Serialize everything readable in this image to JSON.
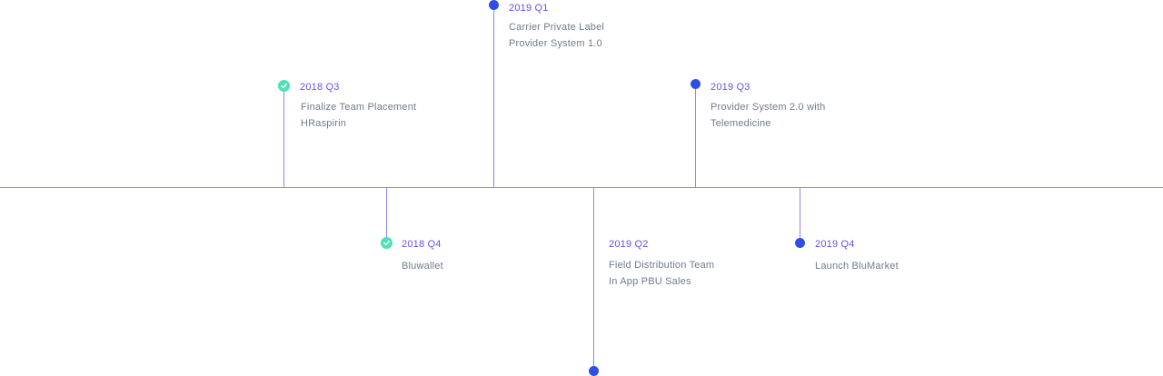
{
  "colors": {
    "line": "#8f86ec",
    "done": "#4fe0b6",
    "pending": "#2f4ee6",
    "quarter": "#6b4fe0",
    "text": "#707b8e"
  },
  "milestones": [
    {
      "quarter": "2018 Q3",
      "lines": [
        "Finalize Team Placement",
        "HRaspirin"
      ],
      "status": "done",
      "icon": "check-icon"
    },
    {
      "quarter": "2018 Q4",
      "lines": [
        "Bluwallet"
      ],
      "status": "done",
      "icon": "check-icon"
    },
    {
      "quarter": "2019 Q1",
      "lines": [
        "Carrier Private Label",
        "Provider System 1.0"
      ],
      "status": "pending",
      "icon": "dot-icon"
    },
    {
      "quarter": "2019 Q2",
      "lines": [
        "Field Distribution Team",
        "In App PBU Sales"
      ],
      "status": "pending",
      "icon": "dot-icon"
    },
    {
      "quarter": "2019 Q3",
      "lines": [
        "Provider System 2.0 with",
        "Telemedicine"
      ],
      "status": "pending",
      "icon": "dot-icon"
    },
    {
      "quarter": "2019 Q4",
      "lines": [
        "Launch BluMarket"
      ],
      "status": "pending",
      "icon": "dot-icon"
    }
  ]
}
